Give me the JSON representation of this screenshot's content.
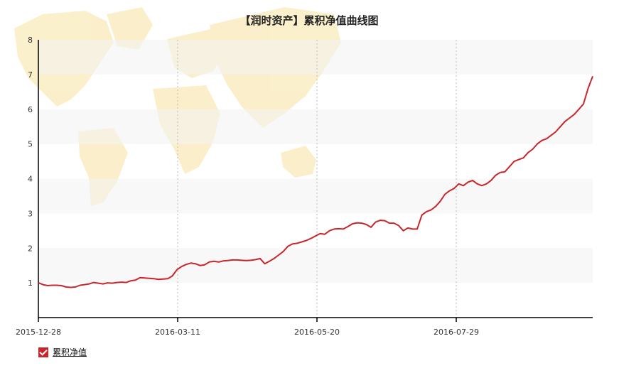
{
  "chart_data": {
    "type": "line",
    "title": "【润时资产】累积净值曲线图",
    "xlabel": "",
    "ylabel": "",
    "x_ticks": [
      "2015-12-28",
      "2016-03-11",
      "2016-05-20",
      "2016-07-29"
    ],
    "y_ticks": [
      "1",
      "2",
      "3",
      "4",
      "5",
      "6",
      "7",
      "8"
    ],
    "ylim": [
      0,
      8
    ],
    "grid": "horizontal bands",
    "legend_position": "bottom-left",
    "series": [
      {
        "name": "累积净值",
        "color": "#c9262b",
        "x": [
          0,
          2,
          4,
          6,
          8,
          10,
          12,
          14,
          16,
          18,
          20,
          22,
          24,
          26,
          28,
          30,
          32,
          34,
          36,
          38,
          40,
          42,
          44,
          46,
          48,
          50,
          52,
          54,
          56,
          58,
          60,
          62,
          64,
          66,
          68,
          70,
          72,
          74,
          76,
          78,
          80,
          82,
          84,
          86,
          88,
          90,
          92,
          94,
          96,
          98,
          100,
          102,
          104,
          106,
          108,
          110,
          112,
          114,
          116,
          118,
          120,
          122,
          124,
          126,
          128,
          130,
          132,
          134,
          136,
          138,
          140,
          142,
          144,
          146,
          148,
          150,
          152,
          154,
          156,
          158,
          160,
          162,
          164,
          166,
          168,
          170,
          172,
          174,
          176,
          178,
          180,
          182,
          184,
          186,
          188,
          190,
          192,
          194,
          196,
          198,
          200,
          202,
          204,
          206,
          208,
          210,
          212,
          214,
          216,
          218,
          220,
          222,
          224,
          226,
          228,
          230,
          232,
          234,
          236,
          238,
          240
        ],
        "values": [
          1.0,
          0.95,
          0.92,
          0.93,
          0.93,
          0.92,
          0.88,
          0.87,
          0.88,
          0.93,
          0.95,
          0.97,
          1.01,
          0.99,
          0.97,
          1.0,
          0.99,
          1.01,
          1.02,
          1.01,
          1.06,
          1.08,
          1.15,
          1.14,
          1.13,
          1.12,
          1.1,
          1.11,
          1.12,
          1.2,
          1.38,
          1.47,
          1.53,
          1.57,
          1.55,
          1.5,
          1.52,
          1.6,
          1.62,
          1.6,
          1.63,
          1.64,
          1.66,
          1.66,
          1.65,
          1.64,
          1.65,
          1.67,
          1.7,
          1.55,
          1.62,
          1.7,
          1.8,
          1.9,
          2.05,
          2.12,
          2.14,
          2.18,
          2.22,
          2.28,
          2.35,
          2.42,
          2.4,
          2.5,
          2.55,
          2.56,
          2.55,
          2.62,
          2.7,
          2.73,
          2.72,
          2.68,
          2.6,
          2.75,
          2.8,
          2.79,
          2.72,
          2.72,
          2.65,
          2.5,
          2.58,
          2.55,
          2.55,
          2.95,
          3.05,
          3.1,
          3.2,
          3.35,
          3.55,
          3.65,
          3.72,
          3.85,
          3.8,
          3.9,
          3.95,
          3.85,
          3.8,
          3.85,
          3.95,
          4.1,
          4.18,
          4.2,
          4.35,
          4.5,
          4.55,
          4.6,
          4.75,
          4.85,
          5.0,
          5.1,
          5.15,
          5.25,
          5.35,
          5.5,
          5.65,
          5.75,
          5.85,
          6.0,
          6.15,
          6.6,
          6.95
        ]
      }
    ]
  },
  "legend": {
    "label": "累积净值"
  }
}
